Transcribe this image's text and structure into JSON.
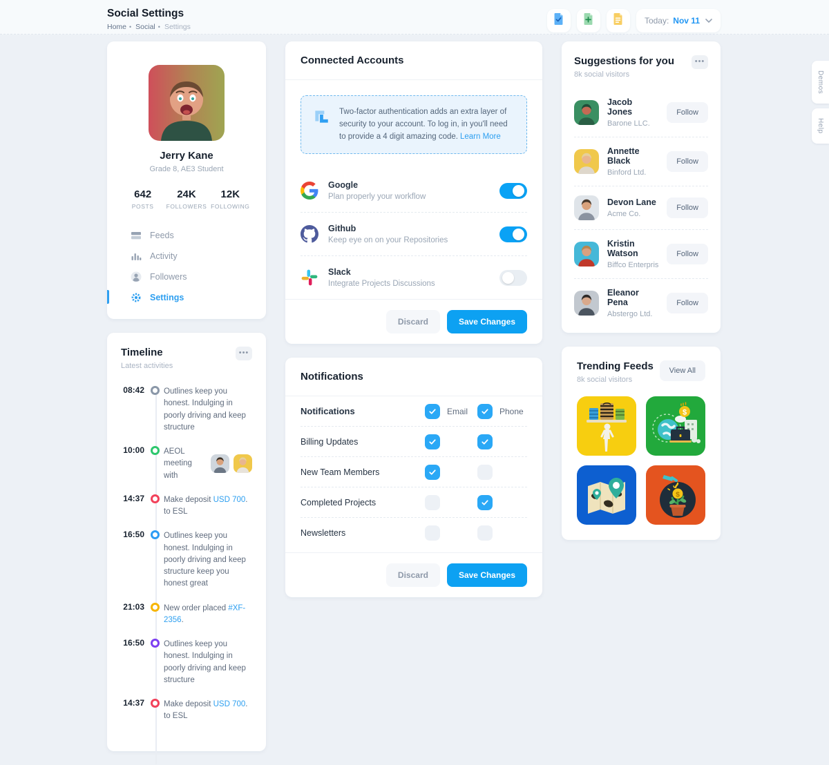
{
  "header": {
    "title": "Social Settings",
    "breadcrumb": [
      {
        "label": "Home",
        "muted": false
      },
      {
        "label": "Social",
        "muted": false
      },
      {
        "label": "Settings",
        "muted": true
      }
    ],
    "actions": [
      {
        "icon": "doc-check-icon"
      },
      {
        "icon": "doc-plus-icon"
      },
      {
        "icon": "doc-lines-icon"
      }
    ],
    "date": {
      "label": "Today:",
      "value": "Nov 11",
      "chevron": "chevron-down-icon"
    }
  },
  "side_tabs": [
    {
      "label": "Demos"
    },
    {
      "label": "Help"
    }
  ],
  "profile": {
    "name": "Jerry Kane",
    "role": "Grade 8, AE3 Student",
    "stats": [
      {
        "value": "642",
        "label": "POSTS"
      },
      {
        "value": "24K",
        "label": "FOLLOWERS"
      },
      {
        "value": "12K",
        "label": "FOLLOWING"
      }
    ],
    "nav": [
      {
        "label": "Feeds",
        "icon": "feeds-icon",
        "active": false
      },
      {
        "label": "Activity",
        "icon": "activity-icon",
        "active": false
      },
      {
        "label": "Followers",
        "icon": "followers-icon",
        "active": false
      },
      {
        "label": "Settings",
        "icon": "settings-icon",
        "active": true
      }
    ]
  },
  "timeline": {
    "title": "Timeline",
    "subtitle": "Latest activities",
    "entries": [
      {
        "time": "08:42",
        "dot_color": "#8a97a8",
        "parts": [
          {
            "t": "Outlines keep you honest. Indulging in poorly driving and keep structure"
          }
        ]
      },
      {
        "time": "10:00",
        "dot_color": "#2dc76d",
        "parts": [
          {
            "t": "AEOL meeting with"
          }
        ],
        "avatars": [
          {
            "bg": "#cfd6dd",
            "hair": "#3d3329",
            "skin": "#d9a27c",
            "shirt": "#6b7684"
          },
          {
            "bg": "#f0c84b",
            "hair": "#e6cf9b",
            "skin": "#e9b68f",
            "shirt": "#e8e3da"
          }
        ]
      },
      {
        "time": "14:37",
        "dot_color": "#f2415a",
        "parts": [
          {
            "t": "Make deposit "
          },
          {
            "t": "USD 700",
            "link": true
          },
          {
            "t": ". to ESL"
          }
        ]
      },
      {
        "time": "16:50",
        "dot_color": "#2d9cf4",
        "parts": [
          {
            "t": "Outlines keep you honest. Indulging in poorly driving and keep structure keep you honest great"
          }
        ]
      },
      {
        "time": "21:03",
        "dot_color": "#f7b500",
        "parts": [
          {
            "t": "New order placed "
          },
          {
            "t": "#XF-2356",
            "link": true
          },
          {
            "t": "."
          }
        ]
      },
      {
        "time": "16:50",
        "dot_color": "#7d3ff1",
        "parts": [
          {
            "t": "Outlines keep you honest. Indulging in poorly driving and keep structure"
          }
        ]
      },
      {
        "time": "14:37",
        "dot_color": "#f2415a",
        "parts": [
          {
            "t": "Make deposit "
          },
          {
            "t": "USD 700",
            "link": true
          },
          {
            "t": ". to ESL"
          }
        ]
      }
    ]
  },
  "accounts": {
    "title": "Connected Accounts",
    "tfa": {
      "icon": "crop-brackets-icon",
      "text": "Two-factor authentication adds an extra layer of security to your account. To log in, in you'll need to provide a 4 digit amazing code.",
      "link": "Learn More"
    },
    "rows": [
      {
        "name": "Google",
        "desc": "Plan properly your workflow",
        "icon": "google-icon",
        "enabled": true
      },
      {
        "name": "Github",
        "desc": "Keep eye on on your Repositories",
        "icon": "github-icon",
        "enabled": true
      },
      {
        "name": "Slack",
        "desc": "Integrate Projects Discussions",
        "icon": "slack-icon",
        "enabled": false
      }
    ]
  },
  "notifications": {
    "title": "Notifications",
    "col_labels": {
      "email": "Email",
      "phone": "Phone"
    },
    "rows": [
      {
        "label": "Notifications",
        "bold": true,
        "email": true,
        "phone": true,
        "show_labels": true
      },
      {
        "label": "Billing Updates",
        "bold": false,
        "email": true,
        "phone": true,
        "show_labels": false
      },
      {
        "label": "New Team Members",
        "bold": false,
        "email": true,
        "phone": false,
        "show_labels": false
      },
      {
        "label": "Completed Projects",
        "bold": false,
        "email": false,
        "phone": true,
        "show_labels": false
      },
      {
        "label": "Newsletters",
        "bold": false,
        "email": false,
        "phone": false,
        "show_labels": false
      }
    ]
  },
  "actions": {
    "discard": "Discard",
    "save": "Save Changes"
  },
  "suggestions": {
    "title": "Suggestions for you",
    "subtitle": "8k social visitors",
    "follow_label": "Follow",
    "rows": [
      {
        "name": "Jacob Jones",
        "company": "Barone LLC.",
        "avatar": {
          "bg": "#3a8f62",
          "hair": "#1f4d38",
          "skin": "#c46a54",
          "shirt": "#2a5f45"
        }
      },
      {
        "name": "Annette Black",
        "company": "Binford Ltd.",
        "avatar": {
          "bg": "#f0c84b",
          "hair": "#e6cf9b",
          "skin": "#e9b68f",
          "shirt": "#ded7cb"
        }
      },
      {
        "name": "Devon Lane",
        "company": "Acme Co.",
        "avatar": {
          "bg": "#dfe4e9",
          "hair": "#4a3b2e",
          "skin": "#d9a27c",
          "shirt": "#8b93a0"
        }
      },
      {
        "name": "Kristin Watson",
        "company": "Biffco Enterprises Ltd.",
        "avatar": {
          "bg": "#45b8d8",
          "hair": "#b8864f",
          "skin": "#dba07f",
          "shirt": "#c0392b"
        }
      },
      {
        "name": "Eleanor Pena",
        "company": "Abstergo Ltd.",
        "avatar": {
          "bg": "#c2c8cf",
          "hair": "#2e2a28",
          "skin": "#d9a98c",
          "shirt": "#4c5560"
        }
      }
    ]
  },
  "trending": {
    "title": "Trending Feeds",
    "subtitle": "8k social visitors",
    "view_all_label": "View All",
    "tiles": [
      {
        "name": "shopping-tile",
        "bg": "#f7ce10"
      },
      {
        "name": "finance-tile",
        "bg": "#22a93c"
      },
      {
        "name": "map-tile",
        "bg": "#0d5fd0"
      },
      {
        "name": "growth-tile",
        "bg": "#e4541f"
      }
    ]
  },
  "colors": {
    "accent_blue": "#0da1f2",
    "link_blue": "#2d9ff0",
    "page_bg": "#edf1f6",
    "checked_blue": "#2aa8f6"
  }
}
